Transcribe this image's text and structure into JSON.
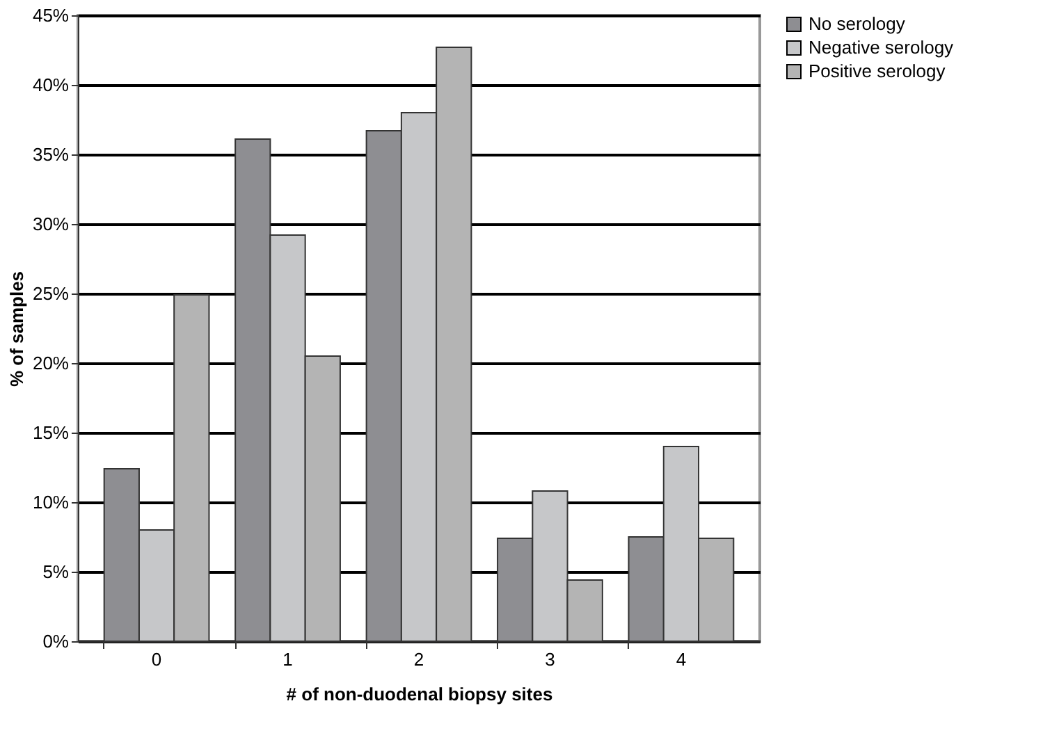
{
  "chart_data": {
    "type": "bar",
    "xlabel": "# of non-duodenal biopsy sites",
    "ylabel": "% of samples",
    "categories": [
      "0",
      "1",
      "2",
      "3",
      "4"
    ],
    "series": [
      {
        "name": "No serology",
        "color": "#8e8e92",
        "values": [
          12.4,
          36.1,
          36.7,
          7.4,
          7.5
        ]
      },
      {
        "name": "Negative serology",
        "color": "#c6c7c9",
        "values": [
          8.0,
          29.2,
          38.0,
          10.8,
          14.0
        ]
      },
      {
        "name": "Positive serology",
        "color": "#b4b4b4",
        "values": [
          24.9,
          20.5,
          42.7,
          4.4,
          7.4
        ]
      }
    ],
    "ylim": [
      0,
      45
    ],
    "yticks": [
      {
        "value": 0,
        "label": "0%"
      },
      {
        "value": 5,
        "label": "5%"
      },
      {
        "value": 10,
        "label": "10%"
      },
      {
        "value": 15,
        "label": "15%"
      },
      {
        "value": 20,
        "label": "20%"
      },
      {
        "value": 25,
        "label": "25%"
      },
      {
        "value": 30,
        "label": "30%"
      },
      {
        "value": 35,
        "label": "35%"
      },
      {
        "value": 40,
        "label": "40%"
      },
      {
        "value": 45,
        "label": "45%"
      }
    ],
    "grid": "y",
    "legend": "right"
  }
}
